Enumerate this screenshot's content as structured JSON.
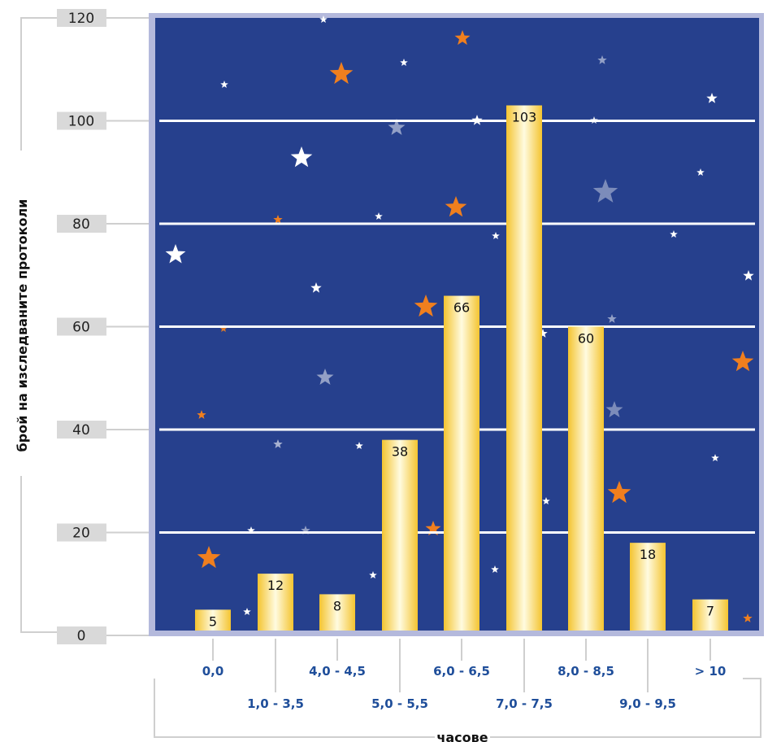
{
  "chart_data": {
    "type": "bar",
    "categories": [
      "0,0",
      "1,0 - 3,5",
      "4,0 - 4,5",
      "5,0 - 5,5",
      "6,0 - 6,5",
      "7,0 - 7,5",
      "8,0 - 8,5",
      "9,0 - 9,5",
      "> 10"
    ],
    "values": [
      5,
      12,
      8,
      38,
      66,
      103,
      60,
      18,
      7
    ],
    "data_labels": [
      "5",
      "12",
      "8",
      "38",
      "66",
      "103",
      "60",
      "18",
      "7"
    ],
    "title": "",
    "xlabel": "часове",
    "ylabel": "брой на изследваните протоколи",
    "ylim": [
      0,
      120
    ],
    "y_ticks": [
      "0",
      "20",
      "40",
      "60",
      "80",
      "100",
      "120"
    ],
    "grid": true,
    "colors": {
      "background": "#26408d",
      "frame": "#b4b9dc",
      "bar_edge": "#f4c430",
      "bar_center": "#fffbe0",
      "gridline": "#ffffff",
      "category_label": "#1f4e9a",
      "tick_box": "#d9d9d9",
      "star_orange": "#f07f1e",
      "star_white": "#ffffff"
    }
  }
}
